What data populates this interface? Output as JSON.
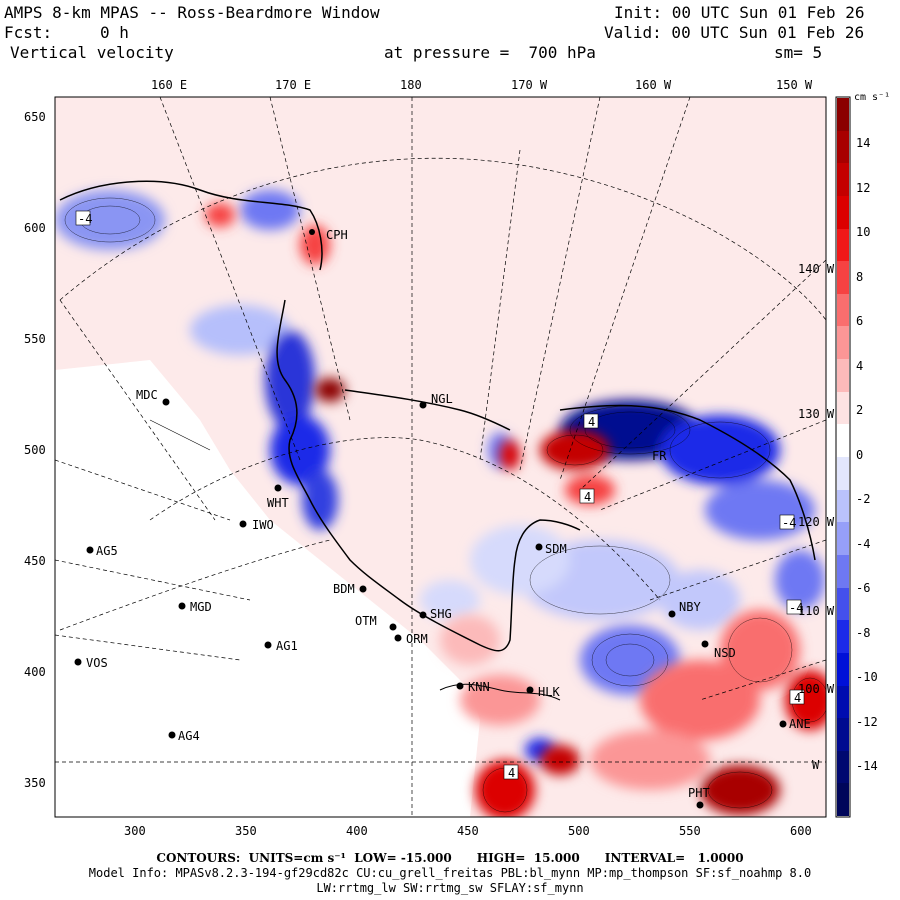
{
  "header": {
    "model": "AMPS 8-km MPAS -- Ross-Beardmore Window",
    "init": "Init: 00 UTC Sun 01 Feb 26",
    "fcst_label": "Fcst:",
    "fcst_value": "0 h",
    "valid": "Valid: 00 UTC Sun 01 Feb 26",
    "field": "Vertical velocity",
    "pressure": "at pressure =  700 hPa",
    "smooth": "sm= 5"
  },
  "map": {
    "top_lon_labels": [
      "160 E",
      "170 E",
      "180",
      "170 W",
      "160 W",
      "150 W"
    ],
    "right_lon_labels": [
      "140 W",
      "130 W",
      "120 W",
      "110 W",
      "100 W",
      "W"
    ],
    "y_ticks": [
      "650",
      "600",
      "550",
      "500",
      "450",
      "400",
      "350"
    ],
    "x_ticks": [
      "300",
      "350",
      "400",
      "450",
      "500",
      "550",
      "600"
    ],
    "stations": [
      "CPH",
      "MDC",
      "NGL",
      "WHT",
      "IWO",
      "AG5",
      "SDM",
      "BDM",
      "SHG",
      "OTM",
      "ORM",
      "MGD",
      "AG1",
      "NBY",
      "NSD",
      "VOS",
      "KNN",
      "HLK",
      "AG4",
      "ANE",
      "PHT",
      "FR"
    ],
    "contour_labels": [
      "-4",
      "-4",
      "4",
      "4",
      "-4",
      "4",
      "4"
    ]
  },
  "colorbar": {
    "units": "cm s⁻¹",
    "ticks": [
      "14",
      "12",
      "10",
      "8",
      "6",
      "4",
      "2",
      "0",
      "-2",
      "-4",
      "-6",
      "-8",
      "-10",
      "-12",
      "-14"
    ],
    "colors": [
      "#8b0000",
      "#a80000",
      "#c40000",
      "#dc0000",
      "#f01818",
      "#f64242",
      "#f96e6e",
      "#fb9696",
      "#fcbaba",
      "#fde2e2",
      "#ffffff",
      "#e2e6fd",
      "#bac2fb",
      "#969ff8",
      "#6e78f3",
      "#4450ec",
      "#1c2ae8",
      "#0010d8",
      "#000cb0",
      "#000a90",
      "#000870",
      "#00065a"
    ]
  },
  "footer": {
    "contours": "CONTOURS:  UNITS=cm s⁻¹  LOW= -15.000      HIGH=  15.000      INTERVAL=   1.0000",
    "model_info": "Model Info: MPASv8.2.3-194-gf29cd82c CU:cu_grell_freitas PBL:bl_mynn MP:mp_thompson SF:sf_noahmp 8.0",
    "physics": "LW:rrtmg_lw SW:rrtmg_sw SFLAY:sf_mynn"
  }
}
